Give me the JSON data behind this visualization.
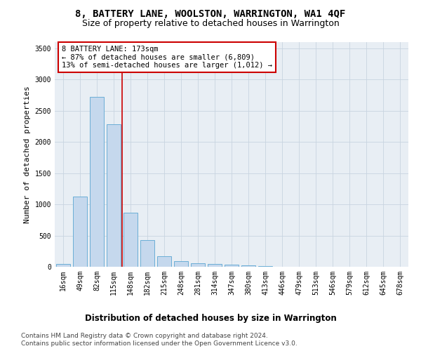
{
  "title": "8, BATTERY LANE, WOOLSTON, WARRINGTON, WA1 4QF",
  "subtitle": "Size of property relative to detached houses in Warrington",
  "xlabel": "Distribution of detached houses by size in Warrington",
  "ylabel": "Number of detached properties",
  "categories": [
    "16sqm",
    "49sqm",
    "82sqm",
    "115sqm",
    "148sqm",
    "182sqm",
    "215sqm",
    "248sqm",
    "281sqm",
    "314sqm",
    "347sqm",
    "380sqm",
    "413sqm",
    "446sqm",
    "479sqm",
    "513sqm",
    "546sqm",
    "579sqm",
    "612sqm",
    "645sqm",
    "678sqm"
  ],
  "values": [
    50,
    1120,
    2720,
    2280,
    870,
    430,
    170,
    90,
    55,
    45,
    30,
    20,
    15,
    0,
    0,
    0,
    0,
    0,
    0,
    0,
    0
  ],
  "bar_color": "#c5d8ed",
  "bar_edge_color": "#6baed6",
  "property_line_color": "#cc0000",
  "property_line_bin": 4,
  "annotation_text": "8 BATTERY LANE: 173sqm\n← 87% of detached houses are smaller (6,809)\n13% of semi-detached houses are larger (1,012) →",
  "annotation_box_color": "#ffffff",
  "annotation_box_edge_color": "#cc0000",
  "ylim": [
    0,
    3600
  ],
  "yticks": [
    0,
    500,
    1000,
    1500,
    2000,
    2500,
    3000,
    3500
  ],
  "grid_color": "#c8d4e0",
  "bg_color": "#e8eef4",
  "footer_line1": "Contains HM Land Registry data © Crown copyright and database right 2024.",
  "footer_line2": "Contains public sector information licensed under the Open Government Licence v3.0.",
  "title_fontsize": 10,
  "subtitle_fontsize": 9,
  "xlabel_fontsize": 8.5,
  "ylabel_fontsize": 8,
  "tick_fontsize": 7,
  "annotation_fontsize": 7.5,
  "footer_fontsize": 6.5
}
